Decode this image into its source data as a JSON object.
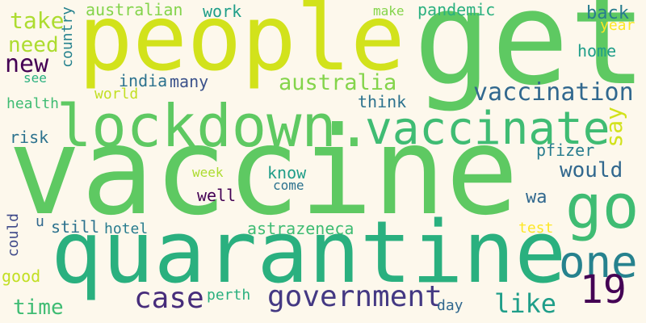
{
  "words": [
    {
      "text": "vaccine",
      "color": "#5ec962"
    },
    {
      "text": "people",
      "color": "#d2e21b"
    },
    {
      "text": "get",
      "color": "#5ec962"
    },
    {
      "text": "quarantine",
      "color": "#2ab07f"
    },
    {
      "text": "lockdown.",
      "color": "#5ec962"
    },
    {
      "text": "vaccinate",
      "color": "#3fbc73"
    },
    {
      "text": "go",
      "color": "#3fbc73"
    },
    {
      "text": "one",
      "color": "#26828e"
    },
    {
      "text": "19",
      "color": "#440154"
    },
    {
      "text": "vaccination",
      "color": "#31688e"
    },
    {
      "text": "government",
      "color": "#443983"
    },
    {
      "text": "australia",
      "color": "#84d44b"
    },
    {
      "text": "case",
      "color": "#472d7b"
    },
    {
      "text": "like",
      "color": "#1f9e89"
    },
    {
      "text": "say",
      "color": "#d2e21b"
    },
    {
      "text": "would",
      "color": "#31688e"
    },
    {
      "text": "take",
      "color": "#addc30"
    },
    {
      "text": "need",
      "color": "#addc30"
    },
    {
      "text": "new",
      "color": "#440154"
    },
    {
      "text": "time",
      "color": "#3fbc73"
    },
    {
      "text": "australian",
      "color": "#84d44b"
    },
    {
      "text": "work",
      "color": "#1f9e89"
    },
    {
      "text": "make",
      "color": "#84d44b"
    },
    {
      "text": "pandemic",
      "color": "#2ab07f"
    },
    {
      "text": "back",
      "color": "#287c8e"
    },
    {
      "text": "year",
      "color": "#fde725"
    },
    {
      "text": "home",
      "color": "#1f9e89"
    },
    {
      "text": "country",
      "color": "#26828e"
    },
    {
      "text": "india",
      "color": "#2c728e"
    },
    {
      "text": "many",
      "color": "#3b528b"
    },
    {
      "text": "see",
      "color": "#2ab07f"
    },
    {
      "text": "world",
      "color": "#c2df23"
    },
    {
      "text": "health",
      "color": "#3fbc73"
    },
    {
      "text": "think",
      "color": "#2c728e"
    },
    {
      "text": "risk",
      "color": "#2c728e"
    },
    {
      "text": "pfizer",
      "color": "#287c8e"
    },
    {
      "text": "week",
      "color": "#addc30"
    },
    {
      "text": "know",
      "color": "#1f9e89"
    },
    {
      "text": "well",
      "color": "#440154"
    },
    {
      "text": "come",
      "color": "#2c728e"
    },
    {
      "text": "wa",
      "color": "#31688e"
    },
    {
      "text": "could",
      "color": "#3e4989"
    },
    {
      "text": "u",
      "color": "#31688e"
    },
    {
      "text": "still",
      "color": "#2c728e"
    },
    {
      "text": "hotel",
      "color": "#287c8e"
    },
    {
      "text": "astrazeneca",
      "color": "#3fbc73"
    },
    {
      "text": "test",
      "color": "#fde725"
    },
    {
      "text": "good",
      "color": "#c2df23"
    },
    {
      "text": "perth",
      "color": "#2ab07f"
    },
    {
      "text": "day",
      "color": "#31688e"
    }
  ]
}
